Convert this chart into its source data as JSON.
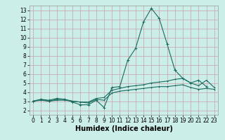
{
  "bg_color": "#cceee8",
  "grid_color": "#c8a0a8",
  "line_color": "#1a6b60",
  "x_label": "Humidex (Indice chaleur)",
  "xlim": [
    -0.5,
    23.5
  ],
  "ylim": [
    1.5,
    13.5
  ],
  "xticks": [
    0,
    1,
    2,
    3,
    4,
    5,
    6,
    7,
    8,
    9,
    10,
    11,
    12,
    13,
    14,
    15,
    16,
    17,
    18,
    19,
    20,
    21,
    22,
    23
  ],
  "yticks": [
    2,
    3,
    4,
    5,
    6,
    7,
    8,
    9,
    10,
    11,
    12,
    13
  ],
  "line1": [
    3.0,
    3.2,
    3.1,
    3.3,
    3.2,
    2.9,
    2.6,
    2.6,
    3.1,
    2.3,
    4.5,
    4.6,
    7.5,
    8.8,
    11.7,
    13.2,
    12.1,
    9.3,
    6.4,
    null,
    null,
    null,
    null,
    null
  ],
  "line2": [
    null,
    null,
    null,
    null,
    null,
    null,
    null,
    null,
    null,
    null,
    null,
    null,
    null,
    null,
    null,
    null,
    null,
    null,
    6.4,
    5.5,
    5.0,
    5.3,
    4.6,
    null
  ],
  "line3": [
    3.0,
    3.2,
    3.0,
    3.2,
    3.2,
    3.0,
    2.9,
    2.9,
    3.3,
    3.4,
    4.2,
    4.4,
    4.6,
    4.7,
    4.8,
    5.0,
    5.1,
    5.2,
    5.4,
    5.5,
    5.0,
    4.7,
    5.3,
    4.5
  ],
  "line4": [
    3.0,
    3.1,
    3.0,
    3.1,
    3.1,
    3.0,
    2.9,
    2.8,
    3.2,
    3.1,
    3.9,
    4.1,
    4.2,
    4.3,
    4.4,
    4.5,
    4.6,
    4.6,
    4.7,
    4.8,
    4.5,
    4.3,
    4.4,
    4.3
  ],
  "title_fontsize": 7,
  "xlabel_fontsize": 7,
  "tick_fontsize": 5.5
}
